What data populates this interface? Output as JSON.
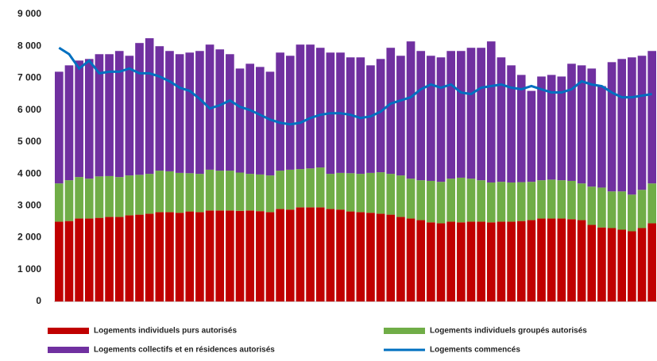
{
  "chart_data": {
    "type": "stacked_bar_line",
    "categories": [
      null,
      null,
      null,
      null,
      null,
      null,
      null,
      null,
      null,
      null,
      null,
      null,
      null,
      null,
      null,
      null,
      null,
      null,
      null,
      null,
      null,
      null,
      null,
      null,
      null,
      null,
      null,
      null,
      null,
      null,
      null,
      null,
      null,
      null,
      null,
      null,
      null,
      null,
      null,
      null,
      null,
      null,
      null,
      null,
      null,
      null,
      null,
      null,
      null,
      null,
      null,
      null,
      null,
      null,
      null,
      null,
      null,
      null,
      null,
      null
    ],
    "series": [
      {
        "name": "Logements individuels purs autorisés",
        "color": "#c00000",
        "kind": "bar",
        "values": [
          2500,
          2520,
          2600,
          2600,
          2620,
          2650,
          2650,
          2700,
          2720,
          2750,
          2800,
          2800,
          2780,
          2820,
          2800,
          2850,
          2850,
          2850,
          2840,
          2850,
          2830,
          2800,
          2900,
          2880,
          2950,
          2950,
          2950,
          2900,
          2880,
          2820,
          2800,
          2780,
          2750,
          2720,
          2650,
          2600,
          2550,
          2480,
          2450,
          2500,
          2480,
          2500,
          2500,
          2480,
          2500,
          2500,
          2520,
          2550,
          2600,
          2600,
          2600,
          2580,
          2550,
          2400,
          2320,
          2300,
          2250,
          2200,
          2300,
          2450
        ]
      },
      {
        "name": "Logements individuels groupés autorisés",
        "color": "#70ad47",
        "kind": "bar",
        "values": [
          1200,
          1280,
          1300,
          1250,
          1300,
          1280,
          1250,
          1250,
          1250,
          1250,
          1300,
          1280,
          1250,
          1200,
          1200,
          1280,
          1250,
          1250,
          1200,
          1150,
          1150,
          1150,
          1200,
          1250,
          1200,
          1220,
          1250,
          1100,
          1150,
          1200,
          1200,
          1250,
          1300,
          1280,
          1300,
          1250,
          1250,
          1300,
          1300,
          1350,
          1400,
          1350,
          1300,
          1250,
          1250,
          1230,
          1220,
          1200,
          1200,
          1220,
          1200,
          1200,
          1150,
          1200,
          1250,
          1150,
          1200,
          1150,
          1200,
          1250
        ]
      },
      {
        "name": "Logements  collectifs et en résidences autorisés",
        "color": "#7030a0",
        "kind": "bar",
        "values": [
          3500,
          3600,
          3650,
          3750,
          3830,
          3820,
          3950,
          3750,
          4130,
          4250,
          3900,
          3770,
          3720,
          3780,
          3850,
          3920,
          3800,
          3650,
          3260,
          3450,
          3370,
          3250,
          3700,
          3570,
          3900,
          3880,
          3750,
          3800,
          3770,
          3630,
          3650,
          3370,
          3550,
          3950,
          3750,
          4300,
          4050,
          3920,
          3900,
          4000,
          3970,
          4100,
          4150,
          4420,
          3900,
          3670,
          3360,
          2850,
          3250,
          3280,
          3250,
          3670,
          3700,
          3700,
          3180,
          4050,
          4150,
          4300,
          4200,
          4150
        ]
      },
      {
        "name": "Logements commencés",
        "color": "#0070c0",
        "kind": "line",
        "values": [
          7950,
          7750,
          7300,
          7550,
          7150,
          7200,
          7200,
          7300,
          7150,
          7150,
          7050,
          6900,
          6700,
          6600,
          6350,
          6050,
          6150,
          6300,
          6100,
          6000,
          5850,
          5700,
          5600,
          5550,
          5600,
          5750,
          5850,
          5900,
          5900,
          5850,
          5750,
          5800,
          5950,
          6200,
          6300,
          6400,
          6650,
          6800,
          6700,
          6800,
          6550,
          6500,
          6700,
          6750,
          6800,
          6700,
          6650,
          6750,
          6650,
          6550,
          6550,
          6650,
          6900,
          6800,
          6750,
          6550,
          6400,
          6400,
          6450,
          6500
        ]
      }
    ],
    "ylim": [
      0,
      9000
    ],
    "yticks": [
      0,
      {
        "value": 1000,
        "label": "1 000"
      },
      {
        "value": 2000,
        "label": "2 000"
      },
      {
        "value": 3000,
        "label": "3 000"
      },
      {
        "value": 4000,
        "label": "4 000"
      },
      {
        "value": 5000,
        "label": "5 000"
      },
      {
        "value": 6000,
        "label": "6 000"
      },
      {
        "value": 7000,
        "label": "7 000"
      },
      {
        "value": 8000,
        "label": "8 000"
      },
      {
        "value": 9000,
        "label": "9 000"
      }
    ],
    "grid": false
  }
}
